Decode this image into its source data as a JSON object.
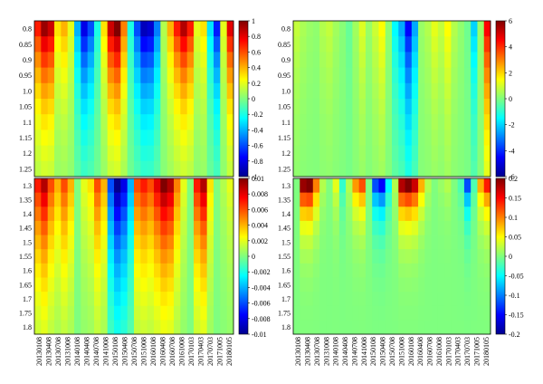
{
  "chart_data": [
    {
      "type": "heatmap",
      "panel": "top-left",
      "y_ticks": [
        "0.8",
        "0.85",
        "0.9",
        "0.95",
        "1.0",
        "1.05",
        "1.1",
        "1.15",
        "1.2",
        "1.25"
      ],
      "x_ticks": [],
      "colorbar": {
        "ticks": [
          "1",
          "0.8",
          "0.6",
          "0.4",
          "0.2",
          "0",
          "-0.2",
          "-0.4",
          "-0.6",
          "-0.8",
          "-1"
        ],
        "range": [
          -1,
          1
        ]
      },
      "columns": 30,
      "pattern": [
        0.7,
        0.95,
        0.85,
        0.3,
        0.4,
        0.2,
        -0.4,
        -0.8,
        -0.6,
        -0.2,
        0.3,
        0.85,
        1.0,
        0.5,
        -0.2,
        -0.6,
        -0.9,
        -0.85,
        -0.5,
        0.1,
        0.4,
        0.7,
        0.9,
        0.7,
        0.2,
        0.3,
        -0.3,
        -0.7,
        0.2,
        0.8
      ],
      "decay": 0.55
    },
    {
      "type": "heatmap",
      "panel": "top-right",
      "y_ticks": [
        "0.8",
        "0.85",
        "0.9",
        "0.95",
        "1.0",
        "1.05",
        "1.1",
        "1.15",
        "1.2",
        "1.25"
      ],
      "x_ticks": [],
      "colorbar": {
        "ticks": [
          "6",
          "4",
          "2",
          "0",
          "-2",
          "-4",
          "-6"
        ],
        "range": [
          -6,
          6
        ]
      },
      "columns": 30,
      "pattern": [
        0.8,
        0.5,
        0.3,
        0.2,
        0.6,
        0.8,
        0.4,
        0.1,
        -0.3,
        0.4,
        1.1,
        0.3,
        0.9,
        1.5,
        0.2,
        -1.5,
        -2.5,
        -4.5,
        -2.5,
        0.3,
        0.6,
        1.2,
        0.8,
        1.5,
        0.6,
        0.2,
        -0.2,
        -2.0,
        0.3,
        4.5
      ],
      "decay": 0.45
    },
    {
      "type": "heatmap",
      "panel": "bottom-left",
      "y_ticks": [
        "1.3",
        "1.35",
        "1.4",
        "1.45",
        "1.5",
        "1.55",
        "1.6",
        "1.65",
        "1.7",
        "1.75",
        "1.8"
      ],
      "x_ticks": [
        "20130108",
        "20130408",
        "20130708",
        "20131008",
        "20140108",
        "20140408",
        "20140708",
        "20141008",
        "20150108",
        "20150408",
        "20150708",
        "20151008",
        "20160108",
        "20160408",
        "20160708",
        "20161008",
        "20170103",
        "20170403",
        "20170703",
        "20171005",
        "20180105"
      ],
      "colorbar": {
        "ticks": [
          "0.01",
          "0.008",
          "0.006",
          "0.004",
          "0.002",
          "0",
          "-0.002",
          "-0.004",
          "-0.006",
          "-0.008",
          "-0.01"
        ],
        "range": [
          -0.01,
          0.01
        ]
      },
      "columns": 30,
      "pattern": [
        0.007,
        0.009,
        0.006,
        0.004,
        0.006,
        0.004,
        0.0,
        0.002,
        0.003,
        0.006,
        0.004,
        -0.006,
        -0.01,
        -0.008,
        -0.004,
        0.006,
        0.007,
        0.006,
        0.008,
        0.01,
        0.009,
        0.005,
        0.002,
        0.0,
        0.007,
        0.009,
        0.003,
        0.0,
        0.001,
        0.002
      ],
      "decay": 0.5
    },
    {
      "type": "heatmap",
      "panel": "bottom-right",
      "y_ticks": [
        "1.3",
        "1.35",
        "1.4",
        "1.45",
        "1.5",
        "1.55",
        "1.6",
        "1.65",
        "1.7",
        "1.75",
        "1.8"
      ],
      "x_ticks": [
        "20130108",
        "20130408",
        "20130708",
        "20131008",
        "20140108",
        "20140408",
        "20140708",
        "20141008",
        "20150108",
        "20150408",
        "20150708",
        "20151008",
        "20160108",
        "20160408",
        "20160708",
        "20161008",
        "20170103",
        "20170403",
        "20170703",
        "20171005",
        "20180105"
      ],
      "colorbar": {
        "ticks": [
          "0.2",
          "0.15",
          "0.1",
          "0.05",
          "0",
          "-0.05",
          "-0.1",
          "-0.15",
          "-0.2"
        ],
        "range": [
          -0.2,
          0.2
        ]
      },
      "columns": 30,
      "pattern": [
        0.0,
        0.19,
        0.2,
        0.1,
        0.02,
        0.0,
        0.04,
        -0.03,
        0.02,
        0.09,
        0.12,
        0.0,
        -0.12,
        -0.15,
        -0.05,
        0.02,
        0.18,
        0.2,
        0.17,
        0.08,
        0.02,
        0.0,
        0.01,
        0.02,
        0.0,
        -0.02,
        -0.12,
        -0.02,
        0.08,
        0.14
      ],
      "decay": 0.9
    }
  ]
}
